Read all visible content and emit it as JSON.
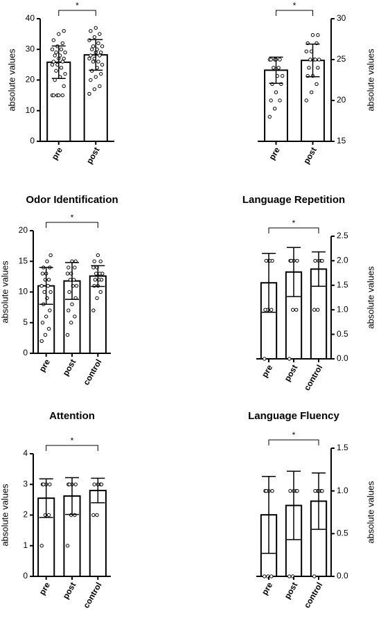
{
  "chart_data": [
    {
      "type": "bar",
      "y_label": "absolute values",
      "y_axis_side": "left",
      "annotation": "*",
      "color": "#000000",
      "categories": [
        "pre",
        "post"
      ],
      "values": [
        25.8,
        28.2
      ],
      "errors": [
        5.3,
        5.0
      ],
      "points": [
        [
          15,
          15,
          15,
          15,
          15,
          18,
          20,
          21,
          22,
          23,
          24,
          25,
          25,
          26,
          26,
          27,
          27,
          28,
          28,
          29,
          29,
          30,
          30,
          31,
          32,
          33,
          35,
          36
        ],
        [
          15.5,
          17,
          18,
          20,
          21,
          22,
          23,
          24,
          25,
          26,
          26,
          27,
          27,
          28,
          28,
          29,
          29,
          30,
          30,
          31,
          31,
          32,
          33,
          34,
          35,
          36,
          37
        ]
      ],
      "ylim": [
        0,
        40
      ],
      "yticks": [
        0,
        10,
        20,
        30,
        40
      ]
    },
    {
      "type": "bar",
      "y_label": "absolute values",
      "y_axis_side": "right",
      "annotation": "*",
      "color": "#000000",
      "categories": [
        "pre",
        "post"
      ],
      "values": [
        23.7,
        24.9
      ],
      "errors": [
        1.6,
        2.0
      ],
      "points": [
        [
          18,
          19,
          20,
          20,
          21,
          22,
          22,
          23,
          23,
          24,
          24,
          25,
          25,
          25,
          25,
          25
        ],
        [
          20,
          21,
          22,
          23,
          23,
          24,
          24,
          25,
          25,
          25,
          25,
          26,
          26,
          27,
          27,
          28,
          28
        ]
      ],
      "ylim": [
        15,
        30
      ],
      "yticks": [
        15,
        20,
        25,
        30
      ]
    },
    {
      "type": "bar",
      "title": "Odor Identification",
      "y_label": "absolute values",
      "y_axis_side": "left",
      "annotation": "*",
      "color": "#000000",
      "categories": [
        "pre",
        "post",
        "control"
      ],
      "values": [
        11.0,
        11.8,
        12.6
      ],
      "errors": [
        3.0,
        3.0,
        1.7
      ],
      "points": [
        [
          2,
          3,
          4,
          5,
          6,
          7,
          8,
          9,
          10,
          10,
          11,
          11,
          12,
          12,
          13,
          13,
          14,
          14,
          15,
          16
        ],
        [
          3,
          5,
          6,
          7,
          8,
          9,
          10,
          11,
          11,
          12,
          12,
          13,
          13,
          14,
          14,
          15,
          15
        ],
        [
          7,
          9,
          10,
          11,
          11,
          12,
          12,
          12,
          13,
          13,
          13,
          14,
          14,
          15,
          15,
          16
        ]
      ],
      "ylim": [
        0,
        20
      ],
      "yticks": [
        0,
        5,
        10,
        15,
        20
      ]
    },
    {
      "type": "bar",
      "title": "Language Repetition",
      "y_label": "absolute values",
      "y_axis_side": "right",
      "annotation": "*",
      "color": "#000000",
      "categories": [
        "pre",
        "post",
        "control"
      ],
      "values": [
        1.55,
        1.77,
        1.83
      ],
      "errors": [
        0.6,
        0.5,
        0.35
      ],
      "points": [
        [
          0,
          1,
          1,
          1,
          2,
          2,
          2,
          2
        ],
        [
          0,
          1,
          1,
          2,
          2,
          2,
          2
        ],
        [
          1,
          1,
          2,
          2,
          2,
          2
        ]
      ],
      "ylim": [
        0,
        2.5
      ],
      "yticks": [
        {
          "value": 0,
          "label": "0.0"
        },
        0.5,
        {
          "value": 1,
          "label": "1.0"
        },
        1.5,
        {
          "value": 2,
          "label": "2.0"
        },
        2.5
      ]
    },
    {
      "type": "bar",
      "title": "Attention",
      "y_label": "absolute values",
      "y_axis_side": "left",
      "annotation": "*",
      "color": "#000000",
      "categories": [
        "pre",
        "post",
        "control"
      ],
      "values": [
        2.55,
        2.62,
        2.8
      ],
      "errors": [
        0.63,
        0.6,
        0.4
      ],
      "points": [
        [
          1,
          2,
          2,
          3,
          3,
          3,
          3
        ],
        [
          1,
          2,
          2,
          3,
          3,
          3,
          3
        ],
        [
          2,
          2,
          3,
          3,
          3,
          3
        ]
      ],
      "ylim": [
        0,
        4
      ],
      "yticks": [
        0,
        1,
        2,
        3,
        4
      ]
    },
    {
      "type": "bar",
      "title": "Language Fluency",
      "y_label": "absolute values",
      "y_axis_side": "right",
      "annotation": "*",
      "color": "#000000",
      "categories": [
        "pre",
        "post",
        "control"
      ],
      "values": [
        0.72,
        0.83,
        0.88
      ],
      "errors": [
        0.45,
        0.4,
        0.33
      ],
      "points": [
        [
          0,
          0,
          0,
          1,
          1,
          1,
          1
        ],
        [
          0,
          0,
          1,
          1,
          1,
          1
        ],
        [
          0,
          1,
          1,
          1,
          1,
          1
        ]
      ],
      "ylim": [
        0,
        1.5
      ],
      "yticks": [
        {
          "value": 0,
          "label": "0.0"
        },
        0.5,
        {
          "value": 1,
          "label": "1.0"
        },
        1.5
      ]
    }
  ]
}
